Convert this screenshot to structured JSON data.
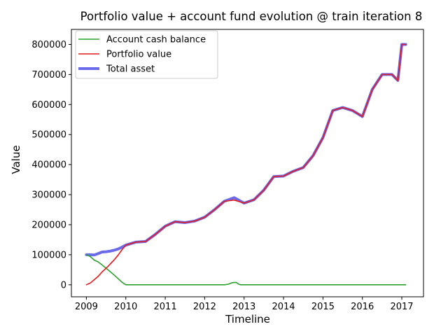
{
  "chart_data": {
    "type": "line",
    "title": "Portfolio value + account fund evolution @ train iteration 8",
    "xlabel": "Timeline",
    "ylabel": "Value",
    "xlim": [
      2008.62,
      2017.55
    ],
    "ylim": [
      -40000,
      850000
    ],
    "xticks": [
      2009,
      2010,
      2011,
      2012,
      2013,
      2014,
      2015,
      2016,
      2017
    ],
    "xtick_labels": [
      "2009",
      "2010",
      "2011",
      "2012",
      "2013",
      "2014",
      "2015",
      "2016",
      "2017"
    ],
    "yticks": [
      0,
      100000,
      200000,
      300000,
      400000,
      500000,
      600000,
      700000,
      800000
    ],
    "ytick_labels": [
      "0",
      "100000",
      "200000",
      "300000",
      "400000",
      "500000",
      "600000",
      "700000",
      "800000"
    ],
    "grid": false,
    "legend_position": "upper-left",
    "series": [
      {
        "name": "Account cash balance",
        "color": "#2ca02c",
        "x": [
          2009.0,
          2009.1,
          2009.2,
          2009.3,
          2009.4,
          2009.5,
          2009.6,
          2009.7,
          2009.8,
          2009.9,
          2010.0,
          2010.5,
          2011.0,
          2012.0,
          2012.5,
          2012.6,
          2012.7,
          2012.8,
          2012.85,
          2012.9,
          2013.0,
          2014.0,
          2015.0,
          2016.0,
          2017.1
        ],
        "y": [
          100000,
          94000,
          82000,
          76000,
          66000,
          55000,
          44000,
          33000,
          21000,
          9000,
          0,
          0,
          0,
          0,
          0,
          2000,
          7000,
          8000,
          3000,
          0,
          0,
          0,
          0,
          0,
          0
        ]
      },
      {
        "name": "Portfolio value",
        "color": "#e31a1c",
        "x": [
          2009.0,
          2009.1,
          2009.2,
          2009.3,
          2009.4,
          2009.5,
          2009.6,
          2009.7,
          2009.8,
          2009.9,
          2010.0,
          2010.25,
          2010.5,
          2010.75,
          2011.0,
          2011.25,
          2011.5,
          2011.75,
          2012.0,
          2012.25,
          2012.5,
          2012.75,
          2013.0,
          2013.25,
          2013.5,
          2013.75,
          2014.0,
          2014.25,
          2014.5,
          2014.75,
          2015.0,
          2015.25,
          2015.5,
          2015.75,
          2016.0,
          2016.25,
          2016.5,
          2016.75,
          2016.9,
          2017.0,
          2017.1
        ],
        "y": [
          0,
          6000,
          17000,
          28000,
          43000,
          55000,
          68000,
          82000,
          98000,
          116000,
          132000,
          142000,
          144000,
          168000,
          195000,
          210000,
          207000,
          212000,
          225000,
          250000,
          278000,
          282000,
          272000,
          283000,
          315000,
          360000,
          362000,
          378000,
          390000,
          430000,
          490000,
          580000,
          590000,
          580000,
          560000,
          650000,
          700000,
          700000,
          680000,
          800000,
          800000
        ]
      },
      {
        "name": "Total asset",
        "color": "#5050e6",
        "x": [
          2009.0,
          2009.1,
          2009.2,
          2009.3,
          2009.4,
          2009.5,
          2009.6,
          2009.7,
          2009.8,
          2009.9,
          2010.0,
          2010.25,
          2010.5,
          2010.75,
          2011.0,
          2011.25,
          2011.5,
          2011.75,
          2012.0,
          2012.25,
          2012.5,
          2012.75,
          2013.0,
          2013.25,
          2013.5,
          2013.75,
          2014.0,
          2014.25,
          2014.5,
          2014.75,
          2015.0,
          2015.25,
          2015.5,
          2015.75,
          2016.0,
          2016.25,
          2016.5,
          2016.75,
          2016.9,
          2017.0,
          2017.1
        ],
        "y": [
          100000,
          100000,
          99000,
          104000,
          109000,
          110000,
          112000,
          115000,
          119000,
          125000,
          132000,
          142000,
          144000,
          168000,
          195000,
          210000,
          207000,
          212000,
          225000,
          250000,
          278000,
          290000,
          272000,
          283000,
          315000,
          360000,
          362000,
          378000,
          390000,
          430000,
          490000,
          580000,
          590000,
          580000,
          560000,
          650000,
          700000,
          700000,
          680000,
          800000,
          800000
        ]
      }
    ]
  }
}
